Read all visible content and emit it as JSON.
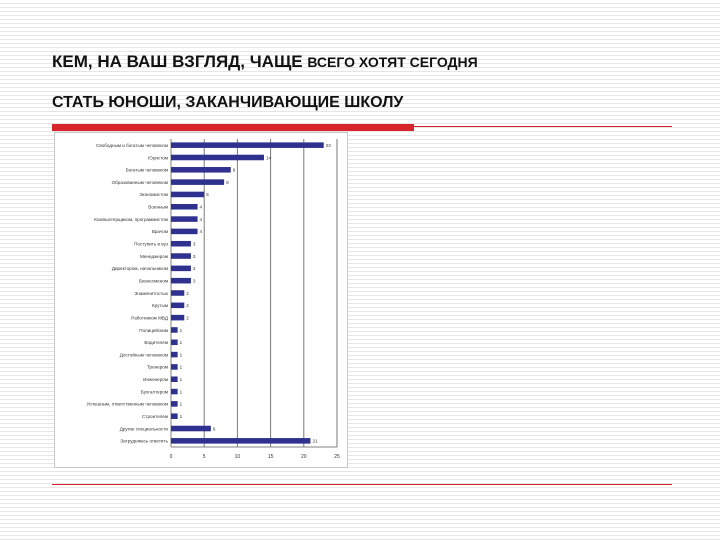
{
  "slide": {
    "title_part1": "КЕМ, НА ВАШ ВЗГЛЯД, ЧАЩЕ",
    "title_part2": "ВСЕГО ХОТЯТ СЕГОДНЯ",
    "title_line2": "СТАТЬ ЮНОШИ, ЗАКАНЧИВАЮЩИЕ ШКОЛУ",
    "accent_color": "#d7262b"
  },
  "chart_data": {
    "type": "bar",
    "orientation": "horizontal",
    "categories": [
      "Свободным и богатым человеком",
      "Юристом",
      "Богатым человеком",
      "Образованным человеком",
      "Экономистом",
      "Военным",
      "Компьютерщиком, программистом",
      "Врачом",
      "Поступить в вуз",
      "Менеджером",
      "Директором, начальником",
      "Бизнесменом",
      "Знаменитостью",
      "Крутым",
      "Работником МВД",
      "Полицейским",
      "Водителем",
      "Достойным человеком",
      "Тренером",
      "Инженером",
      "Бухгалтером",
      "Успешным, ответственным человеком",
      "Строителем",
      "Другие специальности",
      "Затрудняюсь ответить"
    ],
    "values": [
      23,
      14,
      9,
      8,
      5,
      4,
      4,
      4,
      3,
      3,
      3,
      3,
      2,
      2,
      2,
      1,
      1,
      1,
      1,
      1,
      1,
      1,
      1,
      6,
      21
    ],
    "bar_color": "#2f318f",
    "xlim": [
      0,
      25
    ],
    "xticks": [
      0,
      5,
      10,
      15,
      20,
      25
    ],
    "grid": true
  }
}
